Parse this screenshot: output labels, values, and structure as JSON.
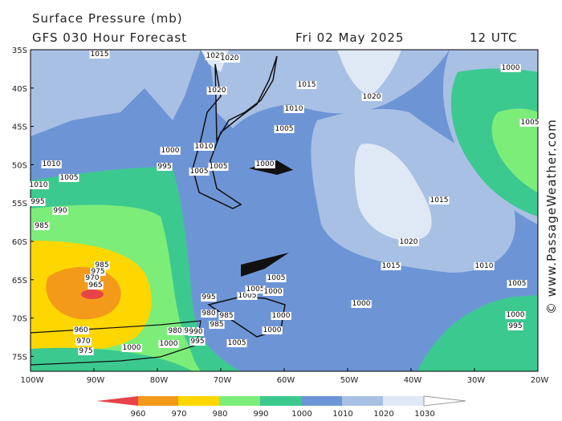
{
  "header": {
    "line1": "Surface Pressure (mb)",
    "line2": "GFS 030 Hour Forecast",
    "date": "Fri 02 May 2025",
    "time": "12 UTC"
  },
  "watermark": "© www.PassageWeather.com",
  "lat_labels": [
    "35S",
    "40S",
    "45S",
    "50S",
    "55S",
    "60S",
    "65S",
    "70S",
    "75S"
  ],
  "lon_labels": [
    "100W",
    "90W",
    "80W",
    "70W",
    "60W",
    "50W",
    "40W",
    "30W",
    "20W"
  ],
  "colorbar_labels": [
    "960",
    "970",
    "980",
    "990",
    "1000",
    "1010",
    "1020",
    "1030"
  ],
  "contour_labels": [
    "1015",
    "1020",
    "1020",
    "1020",
    "1015",
    "1010",
    "1005",
    "1000",
    "1010",
    "1005",
    "1005",
    "1010",
    "1005",
    "1000",
    "1020",
    "1015",
    "1020",
    "1015",
    "1010",
    "1005",
    "1005",
    "1005",
    "1000",
    "995",
    "1000",
    "1005",
    "1010",
    "995",
    "990",
    "985",
    "985",
    "975",
    "970",
    "965",
    "960",
    "970",
    "975",
    "980",
    "985",
    "1000",
    "995",
    "980",
    "990",
    "1000",
    "995",
    "1005",
    "1000",
    "1005",
    "1000",
    "1000",
    "985",
    "990",
    "995",
    "1000"
  ]
}
